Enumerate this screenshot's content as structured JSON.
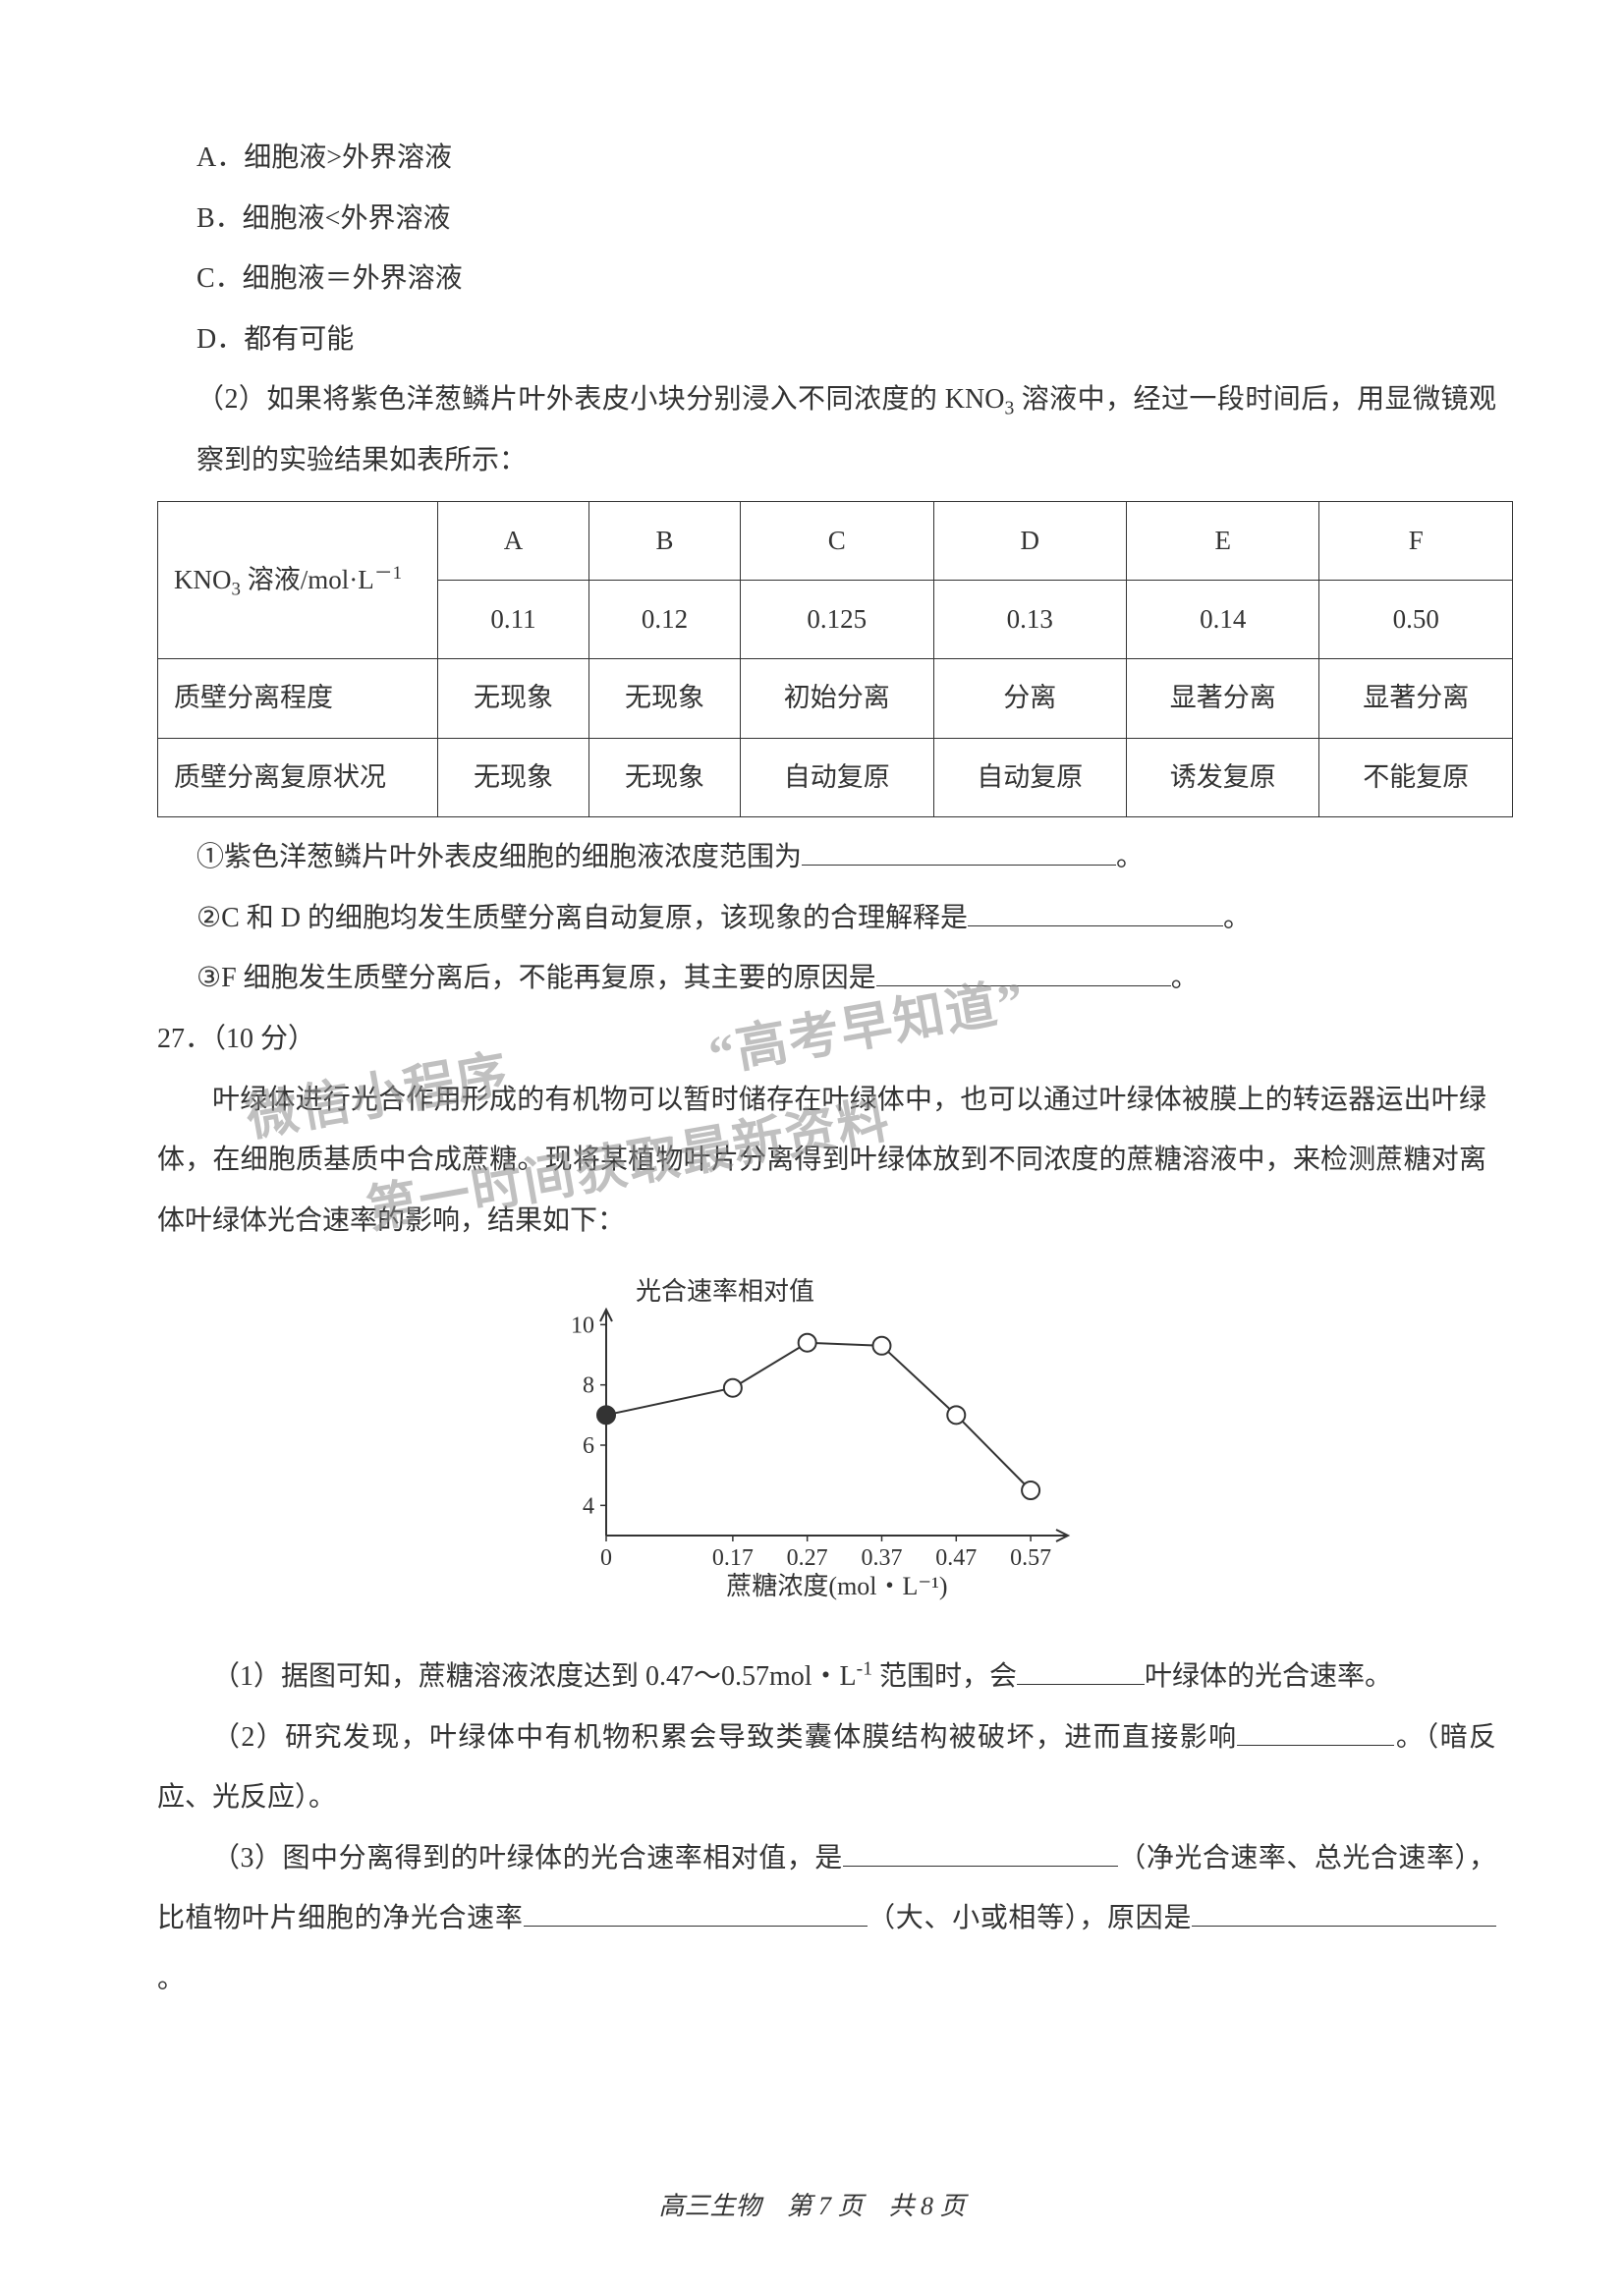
{
  "options": {
    "A": "A．细胞液>外界溶液",
    "B": "B．细胞液<外界溶液",
    "C": "C．细胞液＝外界溶液",
    "D": "D．都有可能"
  },
  "q2_intro_a": "（2）如果将紫色洋葱鳞片叶外表皮小块分别浸入不同浓度的 KNO",
  "q2_intro_b": " 溶液中，经过一段时间后，用显微镜观察到的实验结果如表所示：",
  "table": {
    "row0_label_a": "KNO",
    "row0_label_b": " 溶液/mol·L",
    "columns": [
      "A",
      "B",
      "C",
      "D",
      "E",
      "F"
    ],
    "values": [
      "0.11",
      "0.12",
      "0.125",
      "0.13",
      "0.14",
      "0.50"
    ],
    "row2_label": "质壁分离程度",
    "row2": [
      "无现象",
      "无现象",
      "初始分离",
      "分离",
      "显著分离",
      "显著分离"
    ],
    "row3_label": "质壁分离复原状况",
    "row3": [
      "无现象",
      "无现象",
      "自动复原",
      "自动复原",
      "诱发复原",
      "不能复原"
    ]
  },
  "sub1": "①紫色洋葱鳞片叶外表皮细胞的细胞液浓度范围为",
  "sub1_end": "。",
  "sub2": "②C 和 D 的细胞均发生质壁分离自动复原，该现象的合理解释是",
  "sub2_end": "。",
  "sub3": "③F 细胞发生质壁分离后，不能再复原，其主要的原因是",
  "sub3_end": "。",
  "q27_no": "27．（10 分）",
  "q27_para": "叶绿体进行光合作用形成的有机物可以暂时储存在叶绿体中，也可以通过叶绿体被膜上的转运器运出叶绿体，在细胞质基质中合成蔗糖。现将某植物叶片分离得到叶绿体放到不同浓度的蔗糖溶液中，来检测蔗糖对离体叶绿体光合速率的影响，结果如下：",
  "chart": {
    "type": "line",
    "ylabel": "光合速率相对值",
    "xlabel": "蔗糖浓度(mol・L⁻¹)",
    "xlabels": [
      "0",
      "0.17",
      "0.27",
      "0.37",
      "0.47",
      "0.57"
    ],
    "ylabels": [
      "4",
      "6",
      "8",
      "10"
    ],
    "x": [
      0,
      0.17,
      0.27,
      0.37,
      0.47,
      0.57
    ],
    "y": [
      7.0,
      7.9,
      9.4,
      9.3,
      7.0,
      4.5
    ],
    "xlim": [
      0,
      0.62
    ],
    "ylim": [
      3,
      10.5
    ],
    "marker": "circle-open",
    "first_marker": "circle-filled",
    "line_color": "#333333",
    "marker_size": 9,
    "line_width": 2,
    "axis_color": "#333333",
    "font_size": 24
  },
  "q27_1a": "（1）据图可知，蔗糖溶液浓度达到 0.47～0.57mol・L",
  "q27_1b": " 范围时，会",
  "q27_1c": "叶绿体的光合速率。",
  "q27_2a": "（2）研究发现，叶绿体中有机物积累会导致类囊体膜结构被破坏，进而直接影响",
  "q27_2b": "。（暗反应、光反应）。",
  "q27_3a": "（3）图中分离得到的叶绿体的光合速率相对值，是",
  "q27_3b": "（净光合速率、总光合速率），比植物叶片细胞的净光合速率",
  "q27_3c": "（大、小或相等），原因是",
  "q27_3d": "。",
  "footer": "高三生物　第 7 页　共 8 页",
  "watermarks": {
    "w1": "“高考早知道”",
    "w2": "微信小程序",
    "w3": "第一时间获取最新资料"
  },
  "blanks": {
    "b_sub1": 320,
    "b_sub2": 260,
    "b_sub3": 300,
    "b_271": 130,
    "b_272": 160,
    "b_273a": 280,
    "b_273b": 350,
    "b_273c": 310
  }
}
